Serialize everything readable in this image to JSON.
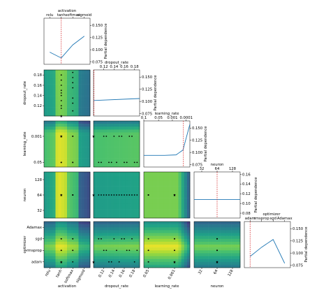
{
  "chart_data": {
    "type": "partial_dependence_matrix",
    "dimensions": [
      {
        "name": "activation",
        "label": "activation",
        "kind": "categorical",
        "categories": [
          "relu",
          "tanh",
          "softmax",
          "sigmoid"
        ],
        "best": "tanh"
      },
      {
        "name": "dropout_rate",
        "label": "dropout_rate",
        "kind": "numeric",
        "range": [
          0.1,
          0.19
        ],
        "ticks": [
          0.12,
          0.14,
          0.16,
          0.18
        ],
        "best": 0.1
      },
      {
        "name": "learning_rate",
        "label": "learning_rate",
        "kind": "log",
        "range": [
          0.1,
          0.0001
        ],
        "ticks": [
          "0.1",
          "0.05",
          "0.001",
          "0.0001"
        ],
        "cross_ticks": [
          "0.001",
          "0.05"
        ],
        "best": "0.001"
      },
      {
        "name": "neuron",
        "label": "neuron",
        "kind": "categorical",
        "categories": [
          "32",
          "64",
          "128"
        ],
        "best": "64"
      },
      {
        "name": "optimizer",
        "label": "optimizer",
        "kind": "categorical",
        "categories": [
          "adam",
          "rmsprop",
          "sgd",
          "Adamax"
        ],
        "best": "adam"
      }
    ],
    "pdp_ylabel": "Partial dependence",
    "pdp_yticks": [
      "0.075",
      "0.100",
      "0.125",
      "0.150"
    ],
    "pdp_ylim": [
      0.07,
      0.165
    ],
    "pdp_neuron_yticks": [
      "0.08",
      "0.10",
      "0.12",
      "0.14",
      "0.16"
    ],
    "pdp_curves": {
      "activation": [
        0.095,
        0.083,
        0.11,
        0.128
      ],
      "dropout_rate": {
        "x": [
          0.1,
          0.19
        ],
        "y": [
          0.102,
          0.106
        ]
      },
      "learning_rate": {
        "x": [
          0.0,
          0.45,
          0.7,
          0.85,
          1.0
        ],
        "y": [
          0.094,
          0.094,
          0.095,
          0.105,
          0.158
        ]
      },
      "neuron": {
        "x": [
          32,
          128
        ],
        "y": [
          0.108,
          0.108
        ]
      },
      "optimizer": [
        0.093,
        0.112,
        0.128,
        0.079
      ]
    },
    "samples": [
      {
        "activation": "tanh",
        "dropout_rate": 0.1,
        "learning_rate": "0.001",
        "neuron": "64",
        "optimizer": "adam"
      },
      {
        "activation": "tanh",
        "dropout_rate": 0.115,
        "learning_rate": "0.05",
        "neuron": "64",
        "optimizer": "sgd"
      },
      {
        "activation": "tanh",
        "dropout_rate": 0.12,
        "learning_rate": "0.001",
        "neuron": "64",
        "optimizer": "rmsprop"
      },
      {
        "activation": "tanh",
        "dropout_rate": 0.13,
        "learning_rate": "0.05",
        "neuron": "64",
        "optimizer": "adam"
      },
      {
        "activation": "tanh",
        "dropout_rate": 0.14,
        "learning_rate": "0.001",
        "neuron": "64",
        "optimizer": "sgd"
      },
      {
        "activation": "tanh",
        "dropout_rate": 0.145,
        "learning_rate": "0.05",
        "neuron": "64",
        "optimizer": "rmsprop"
      },
      {
        "activation": "tanh",
        "dropout_rate": 0.15,
        "learning_rate": "0.001",
        "neuron": "64",
        "optimizer": "adam"
      },
      {
        "activation": "tanh",
        "dropout_rate": 0.16,
        "learning_rate": "0.05",
        "neuron": "64",
        "optimizer": "sgd"
      },
      {
        "activation": "tanh",
        "dropout_rate": 0.17,
        "learning_rate": "0.001",
        "neuron": "64",
        "optimizer": "rmsprop"
      },
      {
        "activation": "tanh",
        "dropout_rate": 0.18,
        "learning_rate": "0.05",
        "neuron": "64",
        "optimizer": "adam"
      },
      {
        "activation": "softmax",
        "dropout_rate": 0.11,
        "learning_rate": "0.05",
        "neuron": "64",
        "optimizer": "sgd"
      },
      {
        "activation": "softmax",
        "dropout_rate": 0.125,
        "learning_rate": "0.001",
        "neuron": "64",
        "optimizer": "rmsprop"
      },
      {
        "activation": "softmax",
        "dropout_rate": 0.135,
        "learning_rate": "0.05",
        "neuron": "64",
        "optimizer": "adam"
      },
      {
        "activation": "softmax",
        "dropout_rate": 0.155,
        "learning_rate": "0.001",
        "neuron": "64",
        "optimizer": "sgd"
      },
      {
        "activation": "softmax",
        "dropout_rate": 0.165,
        "learning_rate": "0.05",
        "neuron": "64",
        "optimizer": "rmsprop"
      },
      {
        "activation": "softmax",
        "dropout_rate": 0.175,
        "learning_rate": "0.001",
        "neuron": "64",
        "optimizer": "sgd"
      },
      {
        "activation": "softmax",
        "dropout_rate": 0.185,
        "learning_rate": "0.05",
        "neuron": "64",
        "optimizer": "rmsprop"
      }
    ],
    "colors": {
      "curve": "#1f77b4",
      "best_line": "#d62728",
      "best_star": "#ff0000",
      "sample_point": "#000000",
      "colormap": [
        "#440154",
        "#46327e",
        "#365c8d",
        "#277f8e",
        "#1fa187",
        "#4ac16d",
        "#a0da39",
        "#fde725"
      ]
    }
  }
}
